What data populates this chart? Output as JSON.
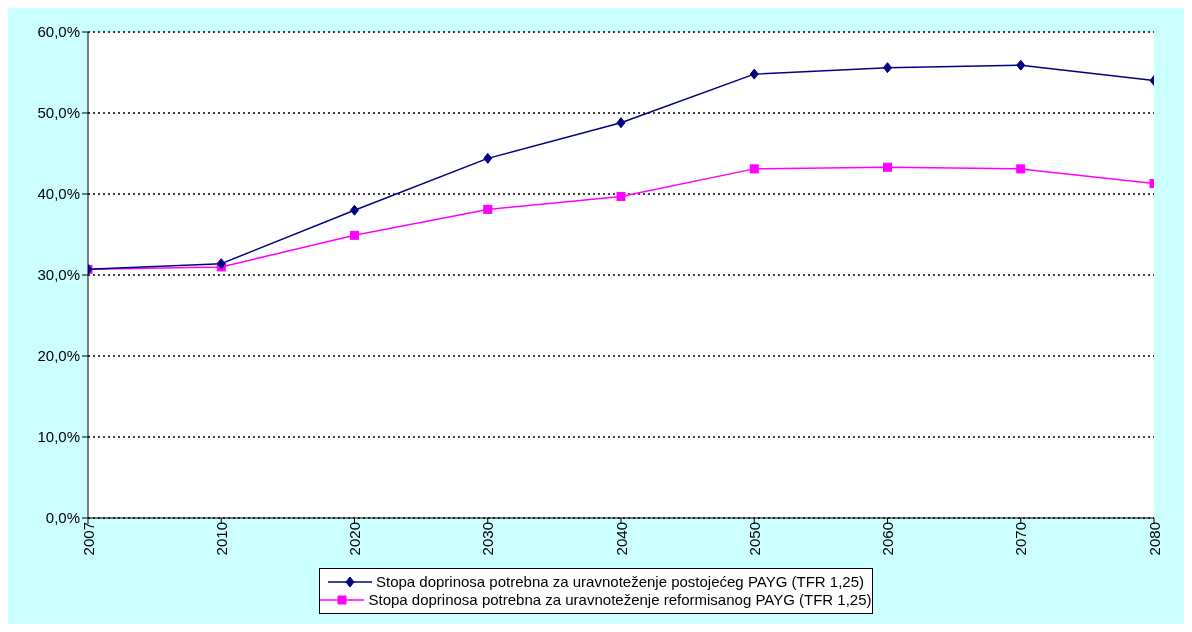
{
  "chart_data": {
    "type": "line",
    "categories": [
      "2007",
      "2010",
      "2020",
      "2030",
      "2040",
      "2050",
      "2060",
      "2070",
      "2080"
    ],
    "series": [
      {
        "name": "Stopa doprinosa potrebna za uravnoteženje postojećeg PAYG (TFR 1,25)",
        "color": "#000080",
        "marker": "diamond",
        "values": [
          30.7,
          31.4,
          38.0,
          44.4,
          48.8,
          54.8,
          55.6,
          55.9,
          54.0
        ]
      },
      {
        "name": "Stopa doprinosa potrebna za uravnoteženje reformisanog PAYG (TFR 1,25)",
        "color": "#ff00ff",
        "marker": "square",
        "values": [
          30.7,
          31.0,
          34.9,
          38.1,
          39.7,
          43.1,
          43.3,
          43.1,
          41.3
        ]
      }
    ],
    "ylim": [
      0,
      60
    ],
    "yticks": [
      {
        "value": 0,
        "label": "0,0%"
      },
      {
        "value": 10,
        "label": "10,0%"
      },
      {
        "value": 20,
        "label": "20,0%"
      },
      {
        "value": 30,
        "label": "30,0%"
      },
      {
        "value": 40,
        "label": "40,0%"
      },
      {
        "value": 50,
        "label": "50,0%"
      },
      {
        "value": 60,
        "label": "60,0%"
      }
    ],
    "grid": "y",
    "legend": "bottom"
  }
}
